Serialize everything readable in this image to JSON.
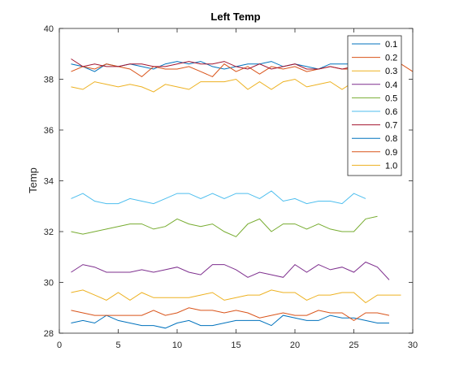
{
  "chart_data": {
    "type": "line",
    "title": "Left Temp",
    "xlabel": "",
    "ylabel": "Temp",
    "xlim": [
      0,
      30
    ],
    "ylim": [
      28,
      40
    ],
    "xticks": [
      0,
      5,
      10,
      15,
      20,
      25,
      30
    ],
    "yticks": [
      28,
      30,
      32,
      34,
      36,
      38,
      40
    ],
    "grid": false,
    "legend_position": "top-right",
    "series": [
      {
        "name": "0.1",
        "color": "#0072BD",
        "x": [
          1,
          2,
          3,
          4,
          5,
          6,
          7,
          8,
          9,
          10,
          11,
          12,
          13,
          14,
          15,
          16,
          17,
          18,
          19,
          20,
          21,
          22,
          23,
          24,
          25,
          26,
          27,
          28
        ],
        "values": [
          38.6,
          38.5,
          38.3,
          38.6,
          38.5,
          38.6,
          38.5,
          38.4,
          38.6,
          38.7,
          38.6,
          38.7,
          38.5,
          38.4,
          38.5,
          38.6,
          38.6,
          38.7,
          38.5,
          38.6,
          38.5,
          38.4,
          38.6,
          38.6,
          38.6,
          38.4,
          38.5,
          38.4
        ]
      },
      {
        "name": "0.2",
        "color": "#D95319",
        "x": [
          1,
          2,
          3,
          4,
          5,
          6,
          7,
          8,
          9,
          10,
          11,
          12,
          13,
          14,
          15,
          16,
          17,
          18,
          19,
          20,
          21,
          22,
          23,
          24,
          25,
          26,
          27,
          28,
          29,
          30
        ],
        "values": [
          38.3,
          38.5,
          38.4,
          38.6,
          38.5,
          38.4,
          38.1,
          38.5,
          38.4,
          38.4,
          38.5,
          38.3,
          38.1,
          38.6,
          38.3,
          38.5,
          38.2,
          38.5,
          38.4,
          38.5,
          38.3,
          38.4,
          38.5,
          38.4,
          38.4,
          38.3,
          38.5,
          38.4,
          38.6,
          38.3
        ]
      },
      {
        "name": "0.3",
        "color": "#EDB120",
        "x": [
          1,
          2,
          3,
          4,
          5,
          6,
          7,
          8,
          9,
          10,
          11,
          12,
          13,
          14,
          15,
          16,
          17,
          18,
          19,
          20,
          21,
          22,
          23,
          24,
          25,
          26,
          27,
          28
        ],
        "values": [
          37.7,
          37.6,
          37.9,
          37.8,
          37.7,
          37.8,
          37.7,
          37.5,
          37.8,
          37.7,
          37.6,
          37.9,
          37.9,
          37.9,
          38.0,
          37.6,
          37.9,
          37.6,
          37.9,
          38.0,
          37.7,
          37.8,
          37.9,
          37.6,
          37.9,
          37.8,
          37.7,
          37.6
        ]
      },
      {
        "name": "0.4",
        "color": "#7E2F8E",
        "x": [
          1,
          2,
          3,
          4,
          5,
          6,
          7,
          8,
          9,
          10,
          11,
          12,
          13,
          14,
          15,
          16,
          17,
          18,
          19,
          20,
          21,
          22,
          23,
          24,
          25,
          26,
          27,
          28
        ],
        "values": [
          30.4,
          30.7,
          30.6,
          30.4,
          30.4,
          30.4,
          30.5,
          30.4,
          30.5,
          30.6,
          30.4,
          30.3,
          30.7,
          30.7,
          30.5,
          30.2,
          30.4,
          30.3,
          30.2,
          30.7,
          30.4,
          30.7,
          30.5,
          30.6,
          30.4,
          30.8,
          30.6,
          30.1
        ]
      },
      {
        "name": "0.5",
        "color": "#77AC30",
        "x": [
          1,
          2,
          3,
          4,
          5,
          6,
          7,
          8,
          9,
          10,
          11,
          12,
          13,
          14,
          15,
          16,
          17,
          18,
          19,
          20,
          21,
          22,
          23,
          24,
          25,
          26,
          27
        ],
        "values": [
          32.0,
          31.9,
          32.0,
          32.1,
          32.2,
          32.3,
          32.3,
          32.1,
          32.2,
          32.5,
          32.3,
          32.2,
          32.3,
          32.0,
          31.8,
          32.3,
          32.5,
          32.0,
          32.3,
          32.3,
          32.1,
          32.3,
          32.1,
          32.0,
          32.0,
          32.5,
          32.6
        ]
      },
      {
        "name": "0.6",
        "color": "#4DBEEE",
        "x": [
          1,
          2,
          3,
          4,
          5,
          6,
          7,
          8,
          9,
          10,
          11,
          12,
          13,
          14,
          15,
          16,
          17,
          18,
          19,
          20,
          21,
          22,
          23,
          24,
          25,
          26
        ],
        "values": [
          33.3,
          33.5,
          33.2,
          33.1,
          33.1,
          33.3,
          33.2,
          33.1,
          33.3,
          33.5,
          33.5,
          33.3,
          33.5,
          33.3,
          33.5,
          33.5,
          33.3,
          33.6,
          33.2,
          33.3,
          33.1,
          33.2,
          33.2,
          33.1,
          33.5,
          33.3
        ]
      },
      {
        "name": "0.7",
        "color": "#A2142F",
        "x": [
          1,
          2,
          3,
          4,
          5,
          6,
          7,
          8,
          9,
          10,
          11,
          12,
          13,
          14,
          15,
          16,
          17,
          18,
          19,
          20,
          21,
          22,
          23,
          24,
          25,
          26,
          27
        ],
        "values": [
          38.8,
          38.5,
          38.6,
          38.5,
          38.5,
          38.6,
          38.6,
          38.5,
          38.5,
          38.6,
          38.7,
          38.6,
          38.6,
          38.7,
          38.5,
          38.4,
          38.6,
          38.4,
          38.5,
          38.6,
          38.4,
          38.4,
          38.5,
          38.4,
          38.5,
          38.4,
          38.5
        ]
      },
      {
        "name": "0.8",
        "color": "#0072BD",
        "x": [
          1,
          2,
          3,
          4,
          5,
          6,
          7,
          8,
          9,
          10,
          11,
          12,
          13,
          14,
          15,
          16,
          17,
          18,
          19,
          20,
          21,
          22,
          23,
          24,
          25,
          26,
          27,
          28
        ],
        "values": [
          28.4,
          28.5,
          28.4,
          28.7,
          28.5,
          28.4,
          28.3,
          28.3,
          28.2,
          28.4,
          28.5,
          28.3,
          28.3,
          28.4,
          28.5,
          28.5,
          28.5,
          28.3,
          28.7,
          28.6,
          28.5,
          28.5,
          28.7,
          28.6,
          28.6,
          28.5,
          28.4,
          28.4
        ]
      },
      {
        "name": "0.9",
        "color": "#D95319",
        "x": [
          1,
          2,
          3,
          4,
          5,
          6,
          7,
          8,
          9,
          10,
          11,
          12,
          13,
          14,
          15,
          16,
          17,
          18,
          19,
          20,
          21,
          22,
          23,
          24,
          25,
          26,
          27,
          28
        ],
        "values": [
          28.9,
          28.8,
          28.7,
          28.7,
          28.7,
          28.7,
          28.7,
          28.9,
          28.7,
          28.8,
          29.0,
          28.9,
          28.9,
          28.8,
          28.9,
          28.8,
          28.6,
          28.7,
          28.8,
          28.7,
          28.7,
          28.9,
          28.8,
          28.8,
          28.5,
          28.8,
          28.8,
          28.7
        ]
      },
      {
        "name": "1.0",
        "color": "#EDB120",
        "x": [
          1,
          2,
          3,
          4,
          5,
          6,
          7,
          8,
          9,
          10,
          11,
          12,
          13,
          14,
          15,
          16,
          17,
          18,
          19,
          20,
          21,
          22,
          23,
          24,
          25,
          26,
          27,
          28,
          29
        ],
        "values": [
          29.6,
          29.7,
          29.5,
          29.3,
          29.6,
          29.3,
          29.6,
          29.4,
          29.4,
          29.4,
          29.4,
          29.5,
          29.6,
          29.3,
          29.4,
          29.5,
          29.5,
          29.7,
          29.6,
          29.6,
          29.3,
          29.5,
          29.5,
          29.6,
          29.6,
          29.2,
          29.5,
          29.5,
          29.5
        ]
      }
    ]
  }
}
